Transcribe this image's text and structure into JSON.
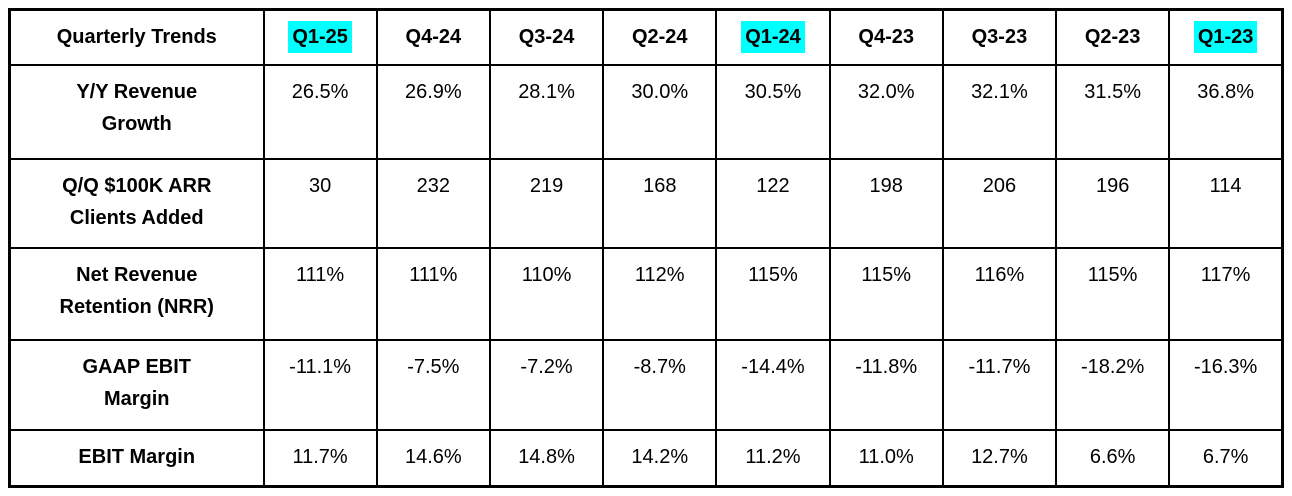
{
  "table": {
    "corner_label": "Quarterly Trends",
    "quarters": [
      {
        "label": "Q1-25",
        "highlighted": true
      },
      {
        "label": "Q4-24",
        "highlighted": false
      },
      {
        "label": "Q3-24",
        "highlighted": false
      },
      {
        "label": "Q2-24",
        "highlighted": false
      },
      {
        "label": "Q1-24",
        "highlighted": true
      },
      {
        "label": "Q4-23",
        "highlighted": false
      },
      {
        "label": "Q3-23",
        "highlighted": false
      },
      {
        "label": "Q2-23",
        "highlighted": false
      },
      {
        "label": "Q1-23",
        "highlighted": true
      }
    ],
    "rows": [
      {
        "label": "Y/Y Revenue\nGrowth",
        "values": [
          "26.5%",
          "26.9%",
          "28.1%",
          "30.0%",
          "30.5%",
          "32.0%",
          "32.1%",
          "31.5%",
          "36.8%"
        ]
      },
      {
        "label": "Q/Q $100K ARR\nClients Added",
        "values": [
          "30",
          "232",
          "219",
          "168",
          "122",
          "198",
          "206",
          "196",
          "114"
        ]
      },
      {
        "label": "Net Revenue\nRetention (NRR)",
        "values": [
          "111%",
          "111%",
          "110%",
          "112%",
          "115%",
          "115%",
          "116%",
          "115%",
          "117%"
        ]
      },
      {
        "label": "GAAP EBIT\nMargin",
        "values": [
          "-11.1%",
          "-7.5%",
          "-7.2%",
          "-8.7%",
          "-14.4%",
          "-11.8%",
          "-11.7%",
          "-18.2%",
          "-16.3%"
        ]
      },
      {
        "label": "EBIT Margin",
        "values": [
          "11.7%",
          "14.6%",
          "14.8%",
          "14.2%",
          "11.2%",
          "11.0%",
          "12.7%",
          "6.6%",
          "6.7%"
        ]
      }
    ],
    "colors": {
      "highlight": "#00FFFF",
      "border": "#000000",
      "text": "#000000",
      "background": "#FFFFFF"
    }
  },
  "chart_data": {
    "type": "table",
    "title": "Quarterly Trends",
    "categories": [
      "Q1-25",
      "Q4-24",
      "Q3-24",
      "Q2-24",
      "Q1-24",
      "Q4-23",
      "Q3-23",
      "Q2-23",
      "Q1-23"
    ],
    "highlighted_categories": [
      "Q1-25",
      "Q1-24",
      "Q1-23"
    ],
    "series": [
      {
        "name": "Y/Y Revenue Growth",
        "unit": "%",
        "values": [
          26.5,
          26.9,
          28.1,
          30.0,
          30.5,
          32.0,
          32.1,
          31.5,
          36.8
        ]
      },
      {
        "name": "Q/Q $100K ARR Clients Added",
        "unit": "count",
        "values": [
          30,
          232,
          219,
          168,
          122,
          198,
          206,
          196,
          114
        ]
      },
      {
        "name": "Net Revenue Retention (NRR)",
        "unit": "%",
        "values": [
          111,
          111,
          110,
          112,
          115,
          115,
          116,
          115,
          117
        ]
      },
      {
        "name": "GAAP EBIT Margin",
        "unit": "%",
        "values": [
          -11.1,
          -7.5,
          -7.2,
          -8.7,
          -14.4,
          -11.8,
          -11.7,
          -18.2,
          -16.3
        ]
      },
      {
        "name": "EBIT Margin",
        "unit": "%",
        "values": [
          11.7,
          14.6,
          14.8,
          14.2,
          11.2,
          11.0,
          12.7,
          6.6,
          6.7
        ]
      }
    ],
    "layout": {
      "highlight_color": "#00FFFF",
      "grid": "all-borders",
      "value_alignment": "center-top"
    }
  }
}
